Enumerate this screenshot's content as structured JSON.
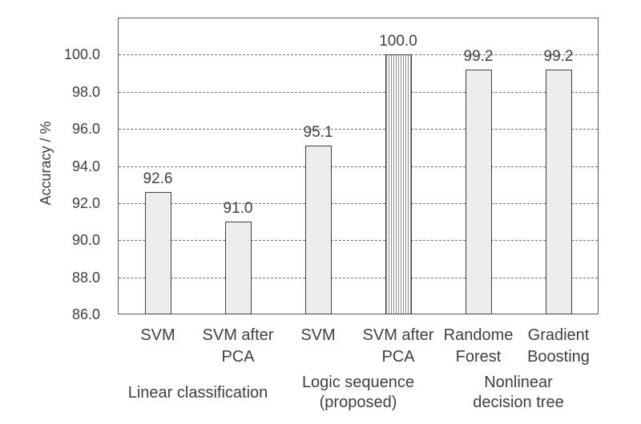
{
  "chart_data": {
    "type": "bar",
    "title": "",
    "xlabel": "",
    "ylabel": "Accuracy / %",
    "ylim": [
      86,
      102
    ],
    "grid": "horizontal-dashed",
    "legend": "none",
    "yticks": [
      {
        "value": 86,
        "label": "86.0"
      },
      {
        "value": 88,
        "label": "88.0"
      },
      {
        "value": 90,
        "label": "90.0"
      },
      {
        "value": 92,
        "label": "92.0"
      },
      {
        "value": 94,
        "label": "94.0"
      },
      {
        "value": 96,
        "label": "96.0"
      },
      {
        "value": 98,
        "label": "98.0"
      },
      {
        "value": 100,
        "label": "100.0"
      }
    ],
    "categories": [
      "SVM",
      "SVM after PCA",
      "SVM",
      "SVM after PCA",
      "Randome Forest",
      "Gradient Boosting"
    ],
    "values": [
      92.6,
      91.0,
      95.1,
      100.0,
      99.2,
      99.2
    ],
    "bars": [
      {
        "category": "SVM",
        "category_lines": [
          "SVM"
        ],
        "value": 92.6,
        "value_label": "92.6",
        "pattern": "solid"
      },
      {
        "category": "SVM after PCA",
        "category_lines": [
          "SVM after",
          "PCA"
        ],
        "value": 91.0,
        "value_label": "91.0",
        "pattern": "solid"
      },
      {
        "category": "SVM",
        "category_lines": [
          "SVM"
        ],
        "value": 95.1,
        "value_label": "95.1",
        "pattern": "solid"
      },
      {
        "category": "SVM after PCA",
        "category_lines": [
          "SVM after",
          "PCA"
        ],
        "value": 100.0,
        "value_label": "100.0",
        "pattern": "vertical-stripes"
      },
      {
        "category": "Randome Forest",
        "category_lines": [
          "Randome",
          "Forest"
        ],
        "value": 99.2,
        "value_label": "99.2",
        "pattern": "solid"
      },
      {
        "category": "Gradient Boosting",
        "category_lines": [
          "Gradient",
          "Boosting"
        ],
        "value": 99.2,
        "value_label": "99.2",
        "pattern": "solid"
      }
    ],
    "groups": [
      {
        "label": "Linear classification",
        "lines": [
          "Linear classification"
        ],
        "span": [
          0,
          1
        ]
      },
      {
        "label": "Logic sequence (proposed)",
        "lines": [
          "Logic sequence",
          "(proposed)"
        ],
        "span": [
          2,
          3
        ]
      },
      {
        "label": "Nonlinear decision tree",
        "lines": [
          "Nonlinear",
          "decision tree"
        ],
        "span": [
          4,
          5
        ]
      }
    ],
    "colors": {
      "background": "#ffffff",
      "bar_fill": "#ededed",
      "bar_border": "#3f3f3f",
      "hatch_line": "#8f8f8f",
      "hatch_background": "#ffffff",
      "gridline": "#757575",
      "plot_border": "#595959",
      "text": "#3f3f3f"
    }
  }
}
